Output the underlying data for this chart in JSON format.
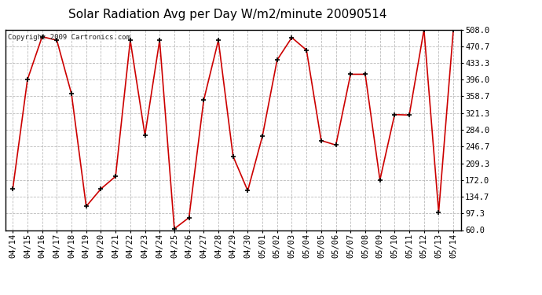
{
  "title": "Solar Radiation Avg per Day W/m2/minute 20090514",
  "copyright": "Copyright 2009 Cartronics.com",
  "dates": [
    "04/14",
    "04/15",
    "04/16",
    "04/17",
    "04/18",
    "04/19",
    "04/20",
    "04/21",
    "04/22",
    "04/23",
    "04/24",
    "04/25",
    "04/26",
    "04/27",
    "04/28",
    "04/29",
    "04/30",
    "05/01",
    "05/02",
    "05/03",
    "05/04",
    "05/05",
    "05/06",
    "05/07",
    "05/08",
    "05/09",
    "05/10",
    "05/11",
    "05/12",
    "05/13",
    "05/14"
  ],
  "values": [
    152,
    396,
    492,
    484,
    364,
    113,
    152,
    180,
    484,
    272,
    484,
    63,
    88,
    350,
    484,
    225,
    148,
    270,
    440,
    490,
    462,
    260,
    250,
    408,
    408,
    172,
    318,
    317,
    508,
    100,
    508
  ],
  "line_color": "#cc0000",
  "marker_color": "#000000",
  "bg_color": "#ffffff",
  "plot_bg_color": "#ffffff",
  "grid_color": "#aaaaaa",
  "title_fontsize": 11,
  "tick_fontsize": 7.5,
  "y_ticks": [
    60.0,
    97.3,
    134.7,
    172.0,
    209.3,
    246.7,
    284.0,
    321.3,
    358.7,
    396.0,
    433.3,
    470.7,
    508.0
  ],
  "ylim_min": 60.0,
  "ylim_max": 508.0
}
